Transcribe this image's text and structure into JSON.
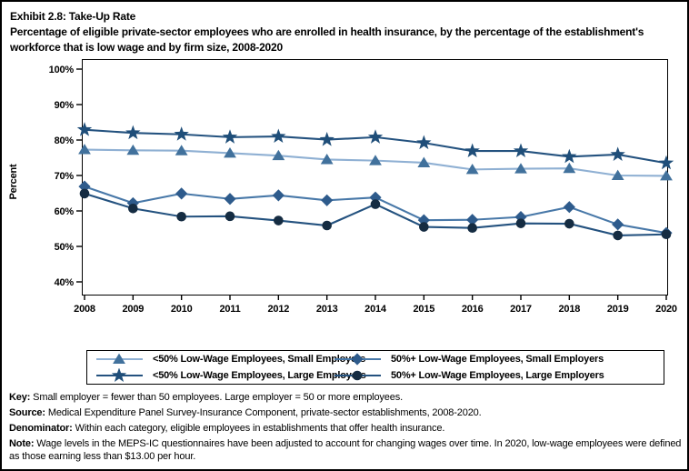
{
  "title": {
    "line1": "Exhibit 2.8: Take-Up Rate",
    "line2": "Percentage of eligible private-sector employees who are enrolled in health insurance, by the percentage of the establishment's workforce that is low wage and by firm size, 2008-2020"
  },
  "chart_data": {
    "type": "line",
    "x": [
      2008,
      2009,
      2010,
      2011,
      2012,
      2013,
      2014,
      2015,
      2016,
      2017,
      2018,
      2019,
      2020
    ],
    "xlabel": "",
    "ylabel": "Percent",
    "ylim": [
      40,
      100
    ],
    "ytick_step": 10,
    "ytick_suffix": "%",
    "grid": "off",
    "legend_position": "bottom",
    "frame_color": "#000000",
    "series": [
      {
        "name": "<50% Low-Wage Employees, Small Employers",
        "marker": "triangle",
        "marker_color": "#41719C",
        "line_color": "#8FB0D3",
        "values": [
          77.3,
          77.1,
          77.0,
          76.3,
          75.6,
          74.5,
          74.2,
          73.6,
          71.7,
          71.9,
          72.0,
          70.0,
          69.9
        ]
      },
      {
        "name": "<50% Low-Wage Employees, Large Employers",
        "marker": "star",
        "marker_color": "#1F4E79",
        "line_color": "#24527F",
        "values": [
          82.9,
          82.0,
          81.6,
          80.8,
          81.0,
          80.1,
          80.8,
          79.2,
          76.9,
          76.9,
          75.3,
          75.9,
          73.5
        ]
      },
      {
        "name": "50%+ Low-Wage Employees, Small Employers",
        "marker": "diamond",
        "marker_color": "#2E5B8C",
        "line_color": "#4878A8",
        "values": [
          66.9,
          62.2,
          64.9,
          63.4,
          64.4,
          63.0,
          63.8,
          57.4,
          57.5,
          58.3,
          61.1,
          56.2,
          53.8
        ]
      },
      {
        "name": "50%+ Low-Wage Employees, Large Employers",
        "marker": "circle",
        "marker_color": "#152C42",
        "line_color": "#24527F",
        "values": [
          64.9,
          60.7,
          58.4,
          58.5,
          57.3,
          55.9,
          61.9,
          55.5,
          55.2,
          56.5,
          56.4,
          53.1,
          53.4
        ]
      }
    ]
  },
  "footnotes": [
    {
      "label": "Key: ",
      "text": "Small employer = fewer than 50 employees. Large employer = 50 or more employees."
    },
    {
      "label": "Source: ",
      "text": "Medical Expenditure Panel Survey-Insurance Component, private-sector establishments, 2008-2020."
    },
    {
      "label": "Denominator: ",
      "text": "Within each category, eligible employees in establishments that offer health insurance."
    },
    {
      "label": "Note: ",
      "text": "Wage levels in the MEPS-IC questionnaires have been adjusted to account for changing wages over time. In 2020, low-wage employees were defined as those earning less than $13.00 per hour."
    }
  ]
}
